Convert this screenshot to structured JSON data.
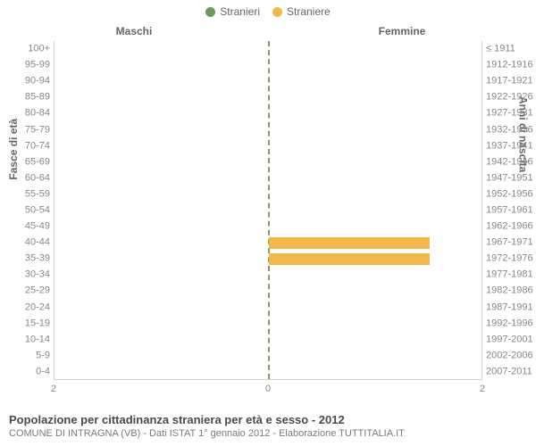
{
  "legend": {
    "male": {
      "label": "Stranieri",
      "color": "#6b9a5b"
    },
    "female": {
      "label": "Straniere",
      "color": "#f2b84b"
    }
  },
  "columns": {
    "left": "Maschi",
    "right": "Femmine"
  },
  "axis_titles": {
    "left": "Fasce di età",
    "right": "Anni di nascita"
  },
  "chart": {
    "type": "population-pyramid",
    "x_max": 2,
    "x_ticks": [
      2,
      0,
      2
    ],
    "grid_color": "#e8e8e8",
    "center_line_color": "#8a9a5b",
    "background_color": "#ffffff",
    "rows": [
      {
        "age": "100+",
        "birth": "≤ 1911",
        "m": 0,
        "f": 0
      },
      {
        "age": "95-99",
        "birth": "1912-1916",
        "m": 0,
        "f": 0
      },
      {
        "age": "90-94",
        "birth": "1917-1921",
        "m": 0,
        "f": 0
      },
      {
        "age": "85-89",
        "birth": "1922-1926",
        "m": 0,
        "f": 0
      },
      {
        "age": "80-84",
        "birth": "1927-1931",
        "m": 0,
        "f": 0
      },
      {
        "age": "75-79",
        "birth": "1932-1936",
        "m": 0,
        "f": 0
      },
      {
        "age": "70-74",
        "birth": "1937-1941",
        "m": 0,
        "f": 0
      },
      {
        "age": "65-69",
        "birth": "1942-1946",
        "m": 0,
        "f": 0
      },
      {
        "age": "60-64",
        "birth": "1947-1951",
        "m": 0,
        "f": 0
      },
      {
        "age": "55-59",
        "birth": "1952-1956",
        "m": 0,
        "f": 0
      },
      {
        "age": "50-54",
        "birth": "1957-1961",
        "m": 0,
        "f": 0
      },
      {
        "age": "45-49",
        "birth": "1962-1966",
        "m": 0,
        "f": 0
      },
      {
        "age": "40-44",
        "birth": "1967-1971",
        "m": 0,
        "f": 1.5
      },
      {
        "age": "35-39",
        "birth": "1972-1976",
        "m": 0,
        "f": 1.5
      },
      {
        "age": "30-34",
        "birth": "1977-1981",
        "m": 0,
        "f": 0
      },
      {
        "age": "25-29",
        "birth": "1982-1986",
        "m": 0,
        "f": 0
      },
      {
        "age": "20-24",
        "birth": "1987-1991",
        "m": 0,
        "f": 0
      },
      {
        "age": "15-19",
        "birth": "1992-1996",
        "m": 0,
        "f": 0
      },
      {
        "age": "10-14",
        "birth": "1997-2001",
        "m": 0,
        "f": 0
      },
      {
        "age": "5-9",
        "birth": "2002-2006",
        "m": 0,
        "f": 0
      },
      {
        "age": "0-4",
        "birth": "2007-2011",
        "m": 0,
        "f": 0
      }
    ]
  },
  "footer": {
    "title": "Popolazione per cittadinanza straniera per età e sesso - 2012",
    "subtitle": "COMUNE DI INTRAGNA (VB) - Dati ISTAT 1° gennaio 2012 - Elaborazione TUTTITALIA.IT"
  }
}
